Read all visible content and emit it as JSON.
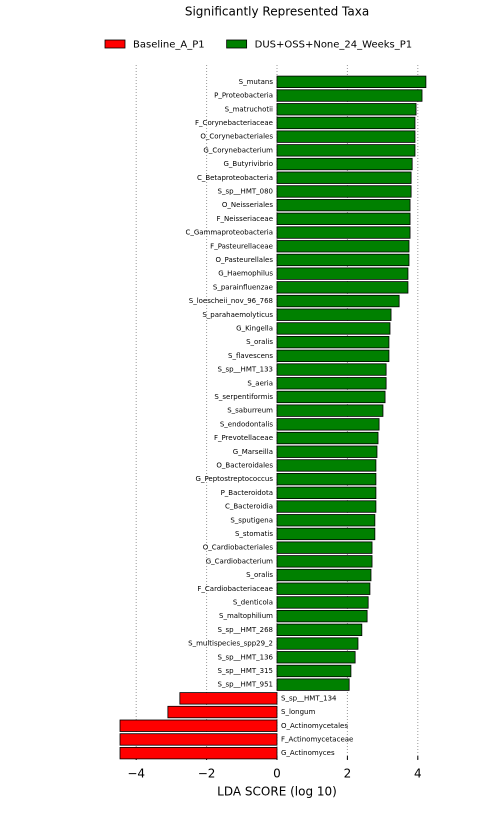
{
  "chart_data": {
    "type": "hbar",
    "title": "Significantly Represented Taxa",
    "xlabel": "LDA SCORE (log 10)",
    "categories": [
      "S_mutans",
      "P_Proteobacteria",
      "S_matruchotii",
      "F_Corynebacteriaceae",
      "O_Corynebacteriales",
      "G_Corynebacterium",
      "G_Butyrivibrio",
      "C_Betaproteobacteria",
      "S_sp__HMT_080",
      "O_Neisseriales",
      "F_Neisseriaceae",
      "C_Gammaproteobacteria",
      "F_Pasteurellaceae",
      "O_Pasteurellales",
      "G_Haemophilus",
      "S_parainfluenzae",
      "S_loescheii_nov_96_768",
      "S_parahaemolyticus",
      "G_Kingella",
      "S_oralis",
      "S_flavescens",
      "S_sp__HMT_133",
      "S_aeria",
      "S_serpentiformis",
      "S_saburreum",
      "S_endodontalis",
      "F_Prevotellaceae",
      "G_Marseilla",
      "O_Bacteroidales",
      "G_Peptostreptococcus",
      "P_Bacteroidota",
      "C_Bacteroidia",
      "S_sputigena",
      "S_stomatis",
      "O_Cardiobacteriales",
      "G_Cardiobacterium",
      "S_oralis",
      "F_Cardiobacteriaceae",
      "S_denticola",
      "S_maltophilium",
      "S_sp__HMT_268",
      "S_multispecies_spp29_2",
      "S_sp__HMT_136",
      "S_sp__HMT_315",
      "S_sp__HMT_951",
      "S_sp__HMT_134",
      "S_longum",
      "O_Actinomycetales",
      "F_Actinomycetaceae",
      "G_Actinomyces"
    ],
    "series": [
      {
        "name": "Baseline_A_P1",
        "color": "#ff0000",
        "values": [
          null,
          null,
          null,
          null,
          null,
          null,
          null,
          null,
          null,
          null,
          null,
          null,
          null,
          null,
          null,
          null,
          null,
          null,
          null,
          null,
          null,
          null,
          null,
          null,
          null,
          null,
          null,
          null,
          null,
          null,
          null,
          null,
          null,
          null,
          null,
          null,
          null,
          null,
          null,
          null,
          null,
          null,
          null,
          null,
          null,
          -2.76,
          -3.1,
          -4.46,
          -4.46,
          -4.46
        ]
      },
      {
        "name": "DUS+OSS+None_24_Weeks_P1",
        "color": "#008000",
        "values": [
          4.23,
          4.12,
          3.95,
          3.92,
          3.92,
          3.92,
          3.84,
          3.81,
          3.81,
          3.78,
          3.78,
          3.78,
          3.75,
          3.75,
          3.72,
          3.72,
          3.47,
          3.24,
          3.21,
          3.18,
          3.18,
          3.1,
          3.1,
          3.07,
          3.01,
          2.9,
          2.87,
          2.84,
          2.81,
          2.81,
          2.81,
          2.81,
          2.78,
          2.78,
          2.7,
          2.7,
          2.67,
          2.64,
          2.59,
          2.56,
          2.41,
          2.3,
          2.22,
          2.1,
          2.05,
          null,
          null,
          null,
          null,
          null
        ]
      }
    ],
    "xlim": [
      -4.5,
      5.5
    ],
    "xticks": [
      {
        "value": -4,
        "label": "−4"
      },
      {
        "value": -2,
        "label": "−2"
      },
      0,
      2,
      4
    ],
    "grid": true
  }
}
